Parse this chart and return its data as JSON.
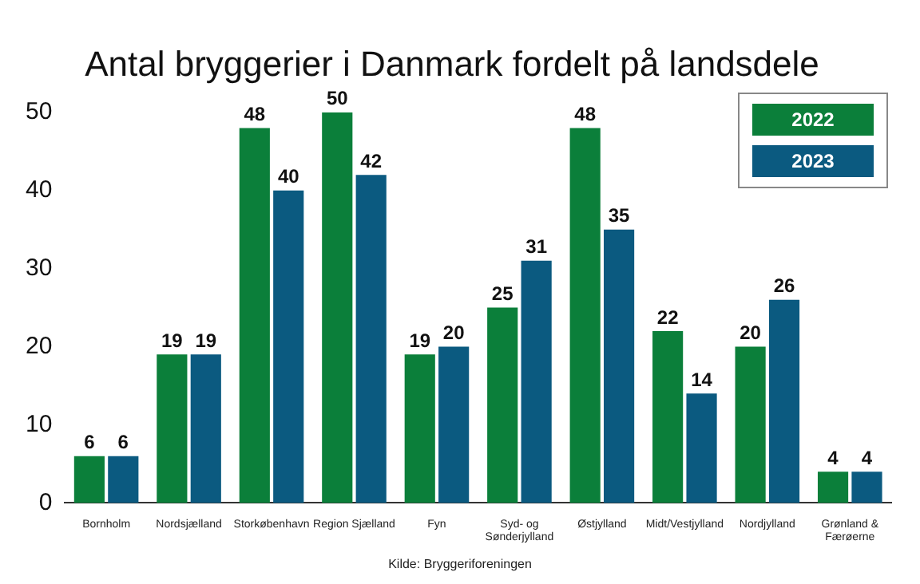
{
  "chart_data": {
    "type": "bar",
    "title": "Antal bryggerier i Danmark fordelt på landsdele",
    "categories": [
      "Bornholm",
      "Nordsjælland",
      "Storkøbenhavn",
      "Region Sjælland",
      "Fyn",
      "Syd- og\nSønderjylland",
      "Østjylland",
      "Midt/Vestjylland",
      "Nordjylland",
      "Grønland &\nFærøerne"
    ],
    "series": [
      {
        "name": "2022",
        "color": "#0b7f3a",
        "values": [
          6,
          19,
          48,
          50,
          19,
          25,
          48,
          22,
          20,
          4
        ]
      },
      {
        "name": "2023",
        "color": "#0b5a80",
        "values": [
          6,
          19,
          40,
          42,
          20,
          31,
          35,
          14,
          26,
          4
        ]
      }
    ],
    "ylim": [
      0,
      50
    ],
    "yticks": [
      0,
      10,
      20,
      30,
      40,
      50
    ],
    "grid": false,
    "legend": "top right",
    "data_labels": true,
    "annotations": [
      "Kilde: Bryggeriforeningen"
    ]
  }
}
